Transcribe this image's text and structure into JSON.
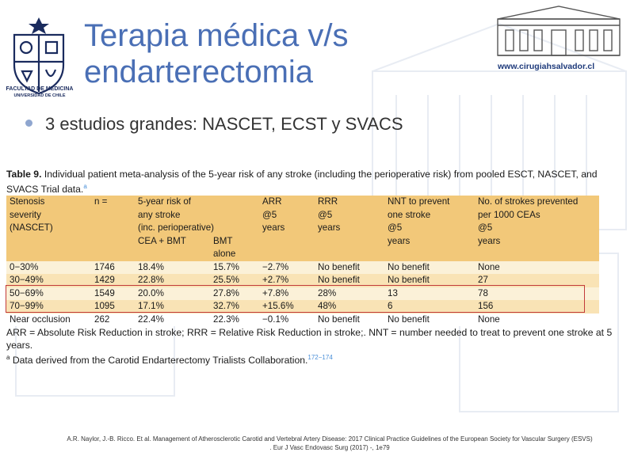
{
  "title": "Terapia médica v/s endarterectomia",
  "bullet": "3 estudios grandes: NASCET, ECST y SVACS",
  "logo_left": {
    "line1": "FACULTAD DE MEDICINA",
    "line2": "UNIVERSIDAD DE CHILE"
  },
  "website": "www.cirugiahsalvador.cl",
  "table_caption": {
    "label": "Table 9.",
    "text": " Individual patient meta-analysis of the 5-year risk of any stroke (including the perioperative risk) from pooled ESCT, NASCET, and SVACS Trial data.",
    "sup": "a"
  },
  "table": {
    "header": {
      "c1": [
        "Stenosis",
        "severity",
        "(NASCET)"
      ],
      "c2": "n =",
      "c3": [
        "5-year risk of",
        "any stroke",
        "(inc. perioperative)"
      ],
      "c3a": "CEA + BMT",
      "c3b": [
        "BMT",
        "alone"
      ],
      "c4": [
        "ARR",
        "@5",
        "years"
      ],
      "c5": [
        "RRR",
        "@5",
        "years"
      ],
      "c6": [
        "NNT to prevent",
        "one stroke",
        "@5",
        "years"
      ],
      "c7": [
        "No. of strokes prevented",
        "per 1000 CEAs",
        "@5",
        "years"
      ]
    },
    "rows": [
      [
        "0−30%",
        "1746",
        "18.4%",
        "15.7%",
        "−2.7%",
        "No benefit",
        "No benefit",
        "None"
      ],
      [
        "30−49%",
        "1429",
        "22.8%",
        "25.5%",
        "+2.7%",
        "No benefit",
        "No benefit",
        "27"
      ],
      [
        "50−69%",
        "1549",
        "20.0%",
        "27.8%",
        "+7.8%",
        "28%",
        "13",
        "78"
      ],
      [
        "70−99%",
        "1095",
        "17.1%",
        "32.7%",
        "+15.6%",
        "48%",
        "6",
        "156"
      ],
      [
        "Near occlusion",
        "262",
        "22.4%",
        "22.3%",
        "−0.1%",
        "No benefit",
        "No benefit",
        "None"
      ]
    ]
  },
  "footnote": {
    "abbrev": "ARR = Absolute Risk Reduction in stroke; RRR = Relative Risk Reduction in stroke;. NNT = number needed to treat to prevent one stroke at 5 years.",
    "sup": "a",
    "note": " Data derived from the Carotid Endarterectomy Trialists Collaboration.",
    "ref": "172−174"
  },
  "reference": "A.R. Naylor, J.-B. Ricco. Et al. Management of Atherosclerotic Carotid and Vertebral Artery Disease: 2017 Clinical Practice Guidelines of the European Society for Vascular Surgery (ESVS) . Eur J Vasc Endovasc Surg (2017) -, 1e79",
  "colors": {
    "title": "#4a6fb5",
    "header_bg": "#f2c879",
    "row_light": "#fbf1d8",
    "row_mid": "#f9e3b5",
    "highlight_border": "#c23a3a"
  }
}
